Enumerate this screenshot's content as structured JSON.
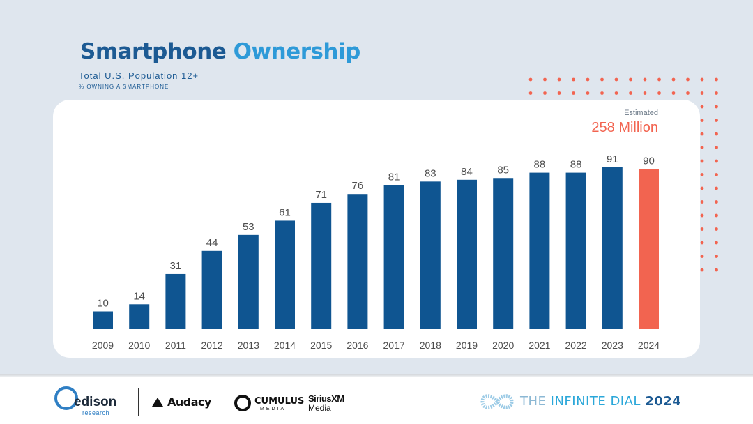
{
  "header": {
    "title_part1": "Smartphone",
    "title_part2": "Ownership",
    "subtitle": "Total U.S. Population 12+",
    "subsubtitle": "% Owning a Smartphone"
  },
  "annotation": {
    "label": "Estimated",
    "value": "258 Million"
  },
  "colors": {
    "bar": "#0f5591",
    "highlight": "#f26450",
    "dots": "#f26450"
  },
  "chart_data": {
    "type": "bar",
    "title": "Smartphone Ownership",
    "subtitle": "Total U.S. Population 12+ — % Owning a Smartphone",
    "xlabel": "",
    "ylabel": "",
    "ylim": [
      0,
      100
    ],
    "grid": false,
    "categories": [
      "2009",
      "2010",
      "2011",
      "2012",
      "2013",
      "2014",
      "2015",
      "2016",
      "2017",
      "2018",
      "2019",
      "2020",
      "2021",
      "2022",
      "2023",
      "2024"
    ],
    "values": [
      10,
      14,
      31,
      44,
      53,
      61,
      71,
      76,
      81,
      83,
      84,
      85,
      88,
      88,
      91,
      90
    ],
    "highlight_index": 15
  },
  "footer": {
    "edison_name": "edison",
    "edison_sub": "research",
    "audacy": "Audacy",
    "cumulus_name": "CUMULUS",
    "cumulus_sub": "MEDIA",
    "sirius_name": "SiriusXM",
    "sirius_sub": "Media",
    "dial_the": "THE",
    "dial_infinite": "INFINITE DIAL",
    "dial_year": "2024"
  }
}
